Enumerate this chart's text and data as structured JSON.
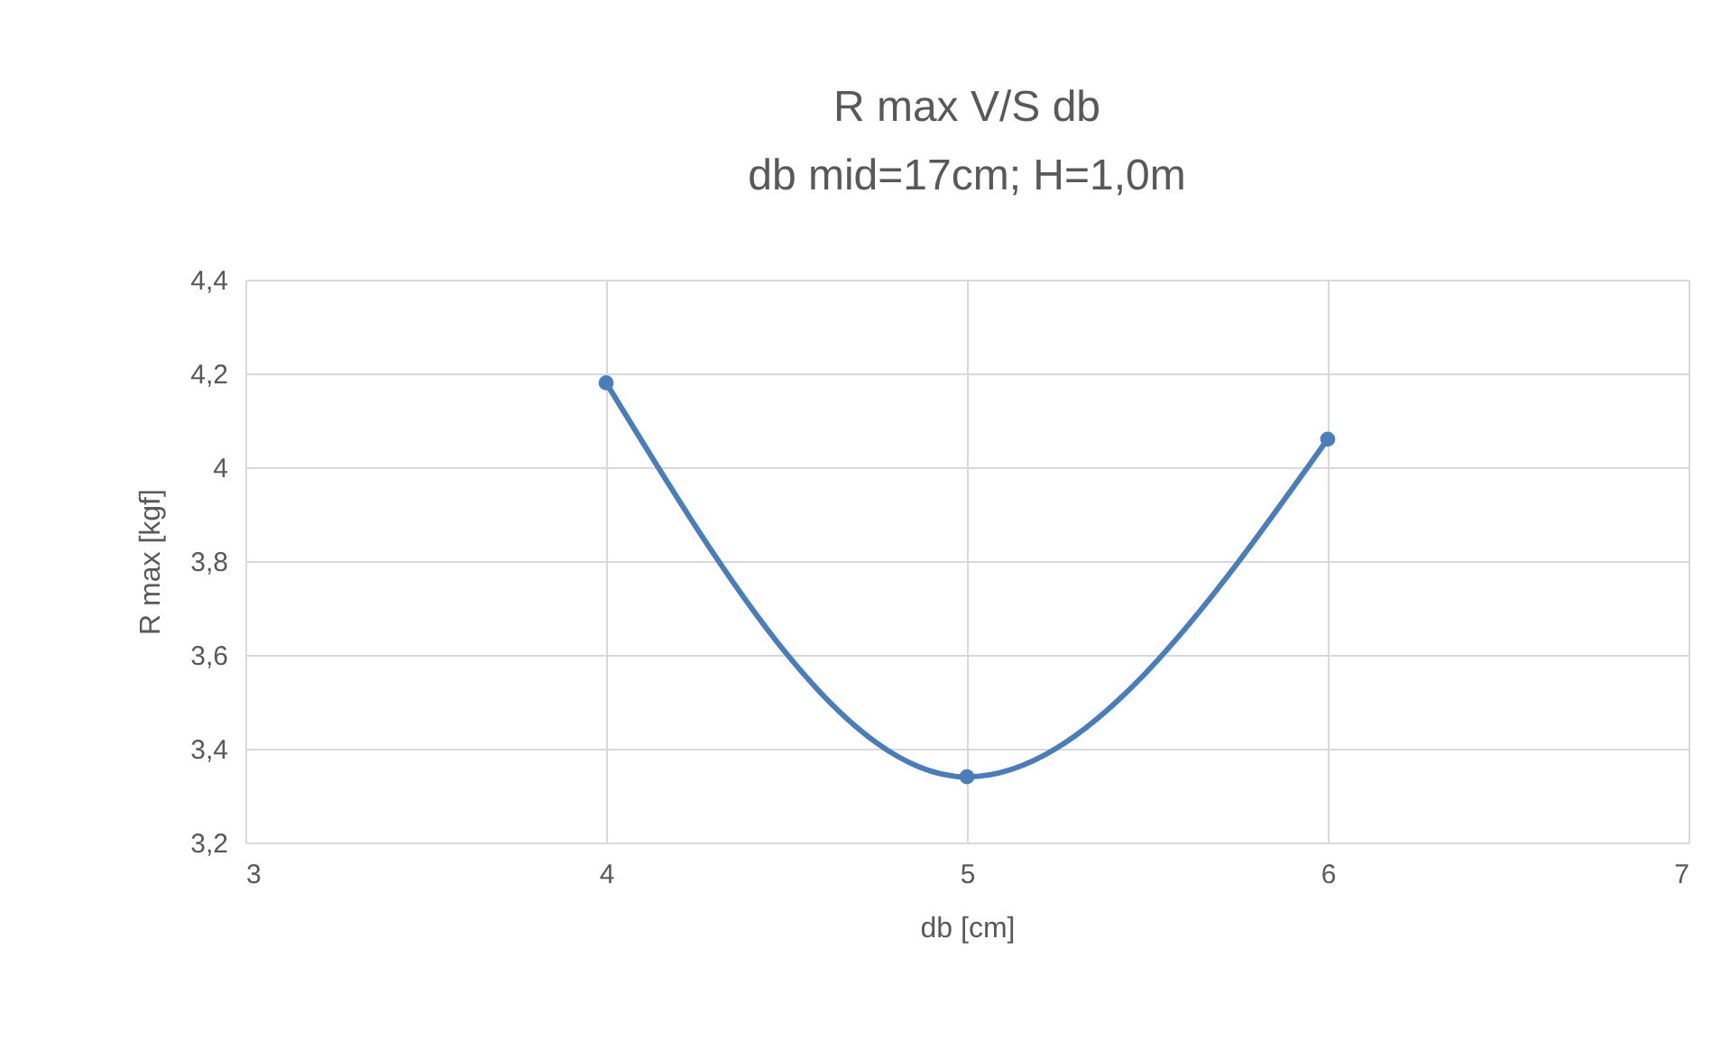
{
  "chart_data": {
    "type": "line",
    "title": "R max V/S db",
    "subtitle": "db mid=17cm; H=1,0m",
    "xlabel": "db [cm]",
    "ylabel": "R max [kgf]",
    "x": [
      4,
      5,
      6
    ],
    "series": [
      {
        "color": "#4a7ebb",
        "values": [
          4.18,
          3.34,
          4.06
        ]
      }
    ],
    "xlim": [
      3,
      7
    ],
    "xticks": [
      3,
      4,
      5,
      6,
      7
    ],
    "ylim": [
      3.2,
      4.4
    ],
    "yticks": [
      {
        "value": 3.2,
        "label": "3,2"
      },
      {
        "value": 3.4,
        "label": "3,4"
      },
      {
        "value": 3.6,
        "label": "3,6"
      },
      {
        "value": 3.8,
        "label": "3,8"
      },
      4,
      {
        "value": 4.2,
        "label": "4,2"
      },
      {
        "value": 4.4,
        "label": "4,4"
      }
    ],
    "grid": true,
    "marker": "circle",
    "line_style": "solid"
  }
}
